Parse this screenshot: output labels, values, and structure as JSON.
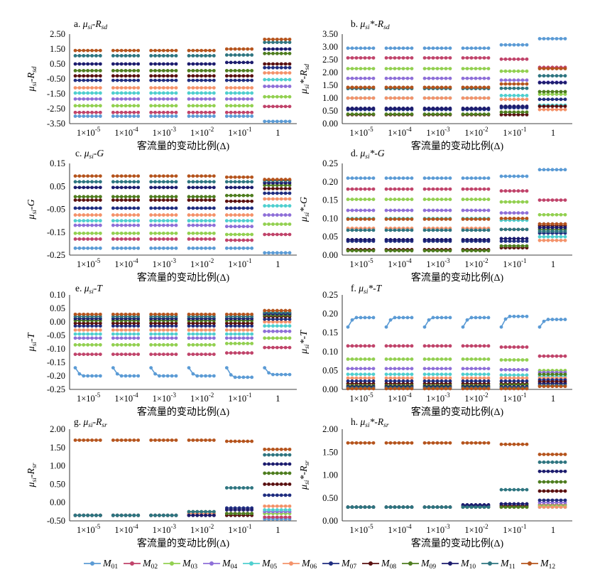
{
  "chart_data": [
    {
      "type": "line",
      "title": "a. μsi-Rsd",
      "title_parts": [
        "a. ",
        "μ",
        "si",
        "-R",
        "sd"
      ],
      "ylabel_parts": [
        "μ",
        "si",
        "-R",
        "sd"
      ],
      "star": false,
      "ylim": [
        -3.5,
        2.5
      ],
      "yticks": [
        "2.50",
        "1.50",
        "0.50",
        "-0.50",
        "-1.50",
        "-2.50",
        "-3.50"
      ],
      "ytick_vals": [
        2.5,
        1.5,
        0.5,
        -0.5,
        -1.5,
        -2.5,
        -3.5
      ],
      "xlabel": "客流量的变动比例(Δ)",
      "series_levels": [
        -3.0,
        -2.7,
        -2.45,
        -2.2,
        -1.95,
        -1.6,
        -1.3,
        -1.05,
        -0.7,
        -0.35,
        -0.05,
        0.3,
        0.55,
        0.85,
        1.1,
        1.4
      ],
      "last_levels": [
        -3.35,
        -2.35,
        -1.6,
        -1.05,
        -0.55,
        -0.1,
        0.25,
        0.5,
        0.85,
        1.2,
        1.5,
        1.7,
        1.95,
        2.15
      ]
    },
    {
      "type": "line",
      "title": "b. μsi*-Rsd",
      "title_parts": [
        "b. ",
        "μ",
        "si",
        "*-R",
        "sd"
      ],
      "ylabel_parts": [
        "μ",
        "si",
        "*-R",
        "sd"
      ],
      "star": true,
      "ylim": [
        0,
        3.5
      ],
      "yticks": [
        "3.50",
        "3.00",
        "2.50",
        "2.00",
        "1.50",
        "1.00",
        "0.50",
        "0.00"
      ],
      "ytick_vals": [
        3.5,
        3.0,
        2.5,
        2.0,
        1.5,
        1.0,
        0.5,
        0.0
      ],
      "xlabel": "客流量的变动比例(Δ)"
    },
    {
      "type": "line",
      "title": "c. μsi-G",
      "title_parts": [
        "c. ",
        "μ",
        "si",
        "-G",
        ""
      ],
      "ylabel_parts": [
        "μ",
        "si",
        "-G",
        ""
      ],
      "star": false,
      "ylim": [
        -0.25,
        0.15
      ],
      "yticks": [
        "0.15",
        "0.05",
        "-0.05",
        "-0.15",
        "-0.25"
      ],
      "ytick_vals": [
        0.15,
        0.05,
        -0.05,
        -0.15,
        -0.25
      ],
      "xlabel": "客流量的变动比例(Δ)"
    },
    {
      "type": "line",
      "title": "d. μsi*-G",
      "title_parts": [
        "d. ",
        "μ",
        "si",
        "*-G",
        ""
      ],
      "ylabel_parts": [
        "μ",
        "si",
        "*-G",
        ""
      ],
      "star": true,
      "ylim": [
        0,
        0.25
      ],
      "yticks": [
        "0.25",
        "0.20",
        "0.15",
        "0.10",
        "0.05",
        "0.00"
      ],
      "ytick_vals": [
        0.25,
        0.2,
        0.15,
        0.1,
        0.05,
        0.0
      ],
      "xlabel": "客流量的变动比例(Δ)"
    },
    {
      "type": "line",
      "title": "e. μsi-T",
      "title_parts": [
        "e. ",
        "μ",
        "si",
        "-T",
        ""
      ],
      "ylabel_parts": [
        "μ",
        "si",
        "-T",
        ""
      ],
      "star": false,
      "ylim": [
        -0.25,
        0.1
      ],
      "yticks": [
        "0.10",
        "0.05",
        "0.00",
        "-0.05",
        "-0.10",
        "-0.15",
        "-0.20",
        "-0.25"
      ],
      "ytick_vals": [
        0.1,
        0.05,
        0.0,
        -0.05,
        -0.1,
        -0.15,
        -0.2,
        -0.25
      ],
      "xlabel": "客流量的变动比例(Δ)"
    },
    {
      "type": "line",
      "title": "f. μsi*-T",
      "title_parts": [
        "f. ",
        "μ",
        "si",
        "*-T",
        ""
      ],
      "ylabel_parts": [
        "μ",
        "si",
        "*-T",
        ""
      ],
      "star": true,
      "ylim": [
        0,
        0.25
      ],
      "yticks": [
        "0.25",
        "0.20",
        "0.15",
        "0.10",
        "0.05",
        "0.00"
      ],
      "ytick_vals": [
        0.25,
        0.2,
        0.15,
        0.1,
        0.05,
        0.0
      ],
      "xlabel": "客流量的变动比例(Δ)"
    },
    {
      "type": "line",
      "title": "g. μsi-Rsr",
      "title_parts": [
        "g. ",
        "μ",
        "si",
        "-R",
        "sr"
      ],
      "ylabel_parts": [
        "μ",
        "si",
        "-R",
        "sr"
      ],
      "star": false,
      "ylim": [
        -0.5,
        2.0
      ],
      "yticks": [
        "2.00",
        "1.50",
        "1.00",
        "0.50",
        "0.00",
        "-0.50"
      ],
      "ytick_vals": [
        2.0,
        1.5,
        1.0,
        0.5,
        0.0,
        -0.5
      ],
      "xlabel": "客流量的变动比例(Δ)"
    },
    {
      "type": "line",
      "title": "h. μsi*-Rsr",
      "title_parts": [
        "h. ",
        "μ",
        "si",
        "*-R",
        "sr"
      ],
      "ylabel_parts": [
        "μ",
        "si",
        "*-R",
        "sr"
      ],
      "star": true,
      "ylim": [
        0,
        2.0
      ],
      "yticks": [
        "2.00",
        "1.50",
        "1.00",
        "0.50",
        "0.00"
      ],
      "ytick_vals": [
        2.0,
        1.5,
        1.0,
        0.5,
        0.0
      ],
      "xlabel": "客流量的变动比例(Δ)"
    }
  ],
  "x_categories": [
    "1×10",
    "1×10",
    "1×10",
    "1×10",
    "1×10",
    "1"
  ],
  "x_exponents": [
    "-5",
    "-4",
    "-3",
    "-2",
    "-1",
    ""
  ],
  "legend": [
    {
      "name": "M01",
      "base": "M",
      "sub": "01",
      "color": "#5B9BD5"
    },
    {
      "name": "M02",
      "base": "M",
      "sub": "02",
      "color": "#C0436A"
    },
    {
      "name": "M03",
      "base": "M",
      "sub": "03",
      "color": "#92D050"
    },
    {
      "name": "M04",
      "base": "M",
      "sub": "04",
      "color": "#8E6FD8"
    },
    {
      "name": "M05",
      "base": "M",
      "sub": "05",
      "color": "#4FCFCF"
    },
    {
      "name": "M06",
      "base": "M",
      "sub": "06",
      "color": "#F4926A"
    },
    {
      "name": "M07",
      "base": "M",
      "sub": "07",
      "color": "#1F2D80"
    },
    {
      "name": "M08",
      "base": "M",
      "sub": "08",
      "color": "#5A1010"
    },
    {
      "name": "M09",
      "base": "M",
      "sub": "09",
      "color": "#4E7D1F"
    },
    {
      "name": "M10",
      "base": "M",
      "sub": "10",
      "color": "#1C1C6E"
    },
    {
      "name": "M11",
      "base": "M",
      "sub": "11",
      "color": "#2E7580"
    },
    {
      "name": "M12",
      "base": "M",
      "sub": "12",
      "color": "#B5541D"
    }
  ]
}
